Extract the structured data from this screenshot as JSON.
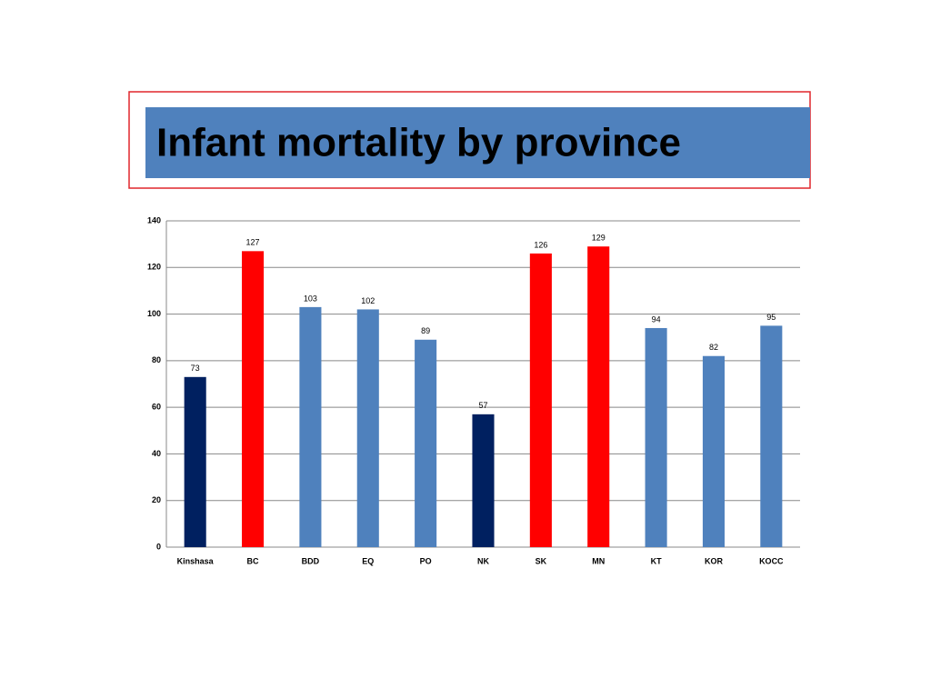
{
  "chart_data": {
    "type": "bar",
    "title": "Infant mortality by province",
    "categories": [
      "Kinshasa",
      "BC",
      "BDD",
      "EQ",
      "PO",
      "NK",
      "SK",
      "MN",
      "KT",
      "KOR",
      "KOCC"
    ],
    "values": [
      73,
      127,
      103,
      102,
      89,
      57,
      126,
      129,
      94,
      82,
      95
    ],
    "colors": [
      "#002060",
      "#ff0000",
      "#4f81bd",
      "#4f81bd",
      "#4f81bd",
      "#002060",
      "#ff0000",
      "#ff0000",
      "#4f81bd",
      "#4f81bd",
      "#4f81bd"
    ],
    "ylim": [
      0,
      140
    ],
    "yticks": [
      0,
      20,
      40,
      60,
      80,
      100,
      120,
      140
    ],
    "grid": true
  }
}
